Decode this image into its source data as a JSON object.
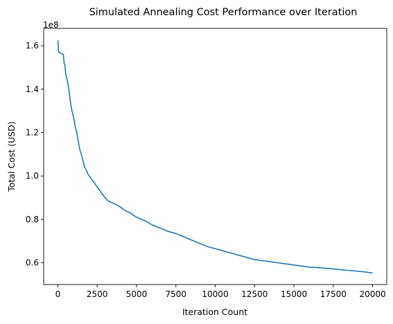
{
  "chart_data": {
    "type": "line",
    "title": "Simulated Annealing Cost Performance over Iteration",
    "xlabel": "Iteration Count",
    "ylabel": "Total Cost (USD)",
    "y_offset_label": "1e8",
    "xlim": [
      -900,
      20900
    ],
    "ylim": [
      0.5,
      1.68
    ],
    "x_ticks": [
      0,
      2500,
      5000,
      7500,
      10000,
      12500,
      15000,
      17500,
      20000
    ],
    "x_tick_labels": [
      "0",
      "2500",
      "5000",
      "7500",
      "10000",
      "12500",
      "15000",
      "17500",
      "20000"
    ],
    "y_ticks": [
      0.6,
      0.8,
      1.0,
      1.2,
      1.4,
      1.6
    ],
    "y_tick_labels": [
      "0.6",
      "0.8",
      "1.0",
      "1.2",
      "1.4",
      "1.6"
    ],
    "grid": false,
    "line_color": "#1f77b4",
    "series": [
      {
        "x": [
          0,
          50,
          100,
          200,
          350,
          400,
          450,
          500,
          600,
          700,
          800,
          900,
          1000,
          1100,
          1200,
          1300,
          1400,
          1500,
          1600,
          1700,
          1800,
          1900,
          2000,
          2200,
          2400,
          2600,
          2800,
          3000,
          3200,
          3500,
          3800,
          4000,
          4300,
          4600,
          5000,
          5500,
          6000,
          6500,
          7000,
          7500,
          8000,
          8500,
          9000,
          9500,
          10000,
          10500,
          11000,
          11500,
          12000,
          12500,
          13000,
          13500,
          14000,
          14500,
          15000,
          15500,
          16000,
          16500,
          17000,
          17500,
          18000,
          18500,
          19000,
          19500,
          20000
        ],
        "values": [
          1.625,
          1.57,
          1.57,
          1.565,
          1.56,
          1.52,
          1.51,
          1.47,
          1.44,
          1.4,
          1.34,
          1.3,
          1.27,
          1.23,
          1.2,
          1.16,
          1.12,
          1.1,
          1.07,
          1.04,
          1.03,
          1.01,
          1.0,
          0.98,
          0.96,
          0.94,
          0.92,
          0.9,
          0.885,
          0.875,
          0.865,
          0.855,
          0.84,
          0.83,
          0.81,
          0.795,
          0.775,
          0.76,
          0.745,
          0.735,
          0.72,
          0.705,
          0.69,
          0.675,
          0.665,
          0.655,
          0.645,
          0.635,
          0.625,
          0.615,
          0.61,
          0.605,
          0.6,
          0.595,
          0.59,
          0.585,
          0.58,
          0.578,
          0.575,
          0.572,
          0.568,
          0.565,
          0.562,
          0.558,
          0.553
        ]
      }
    ]
  }
}
